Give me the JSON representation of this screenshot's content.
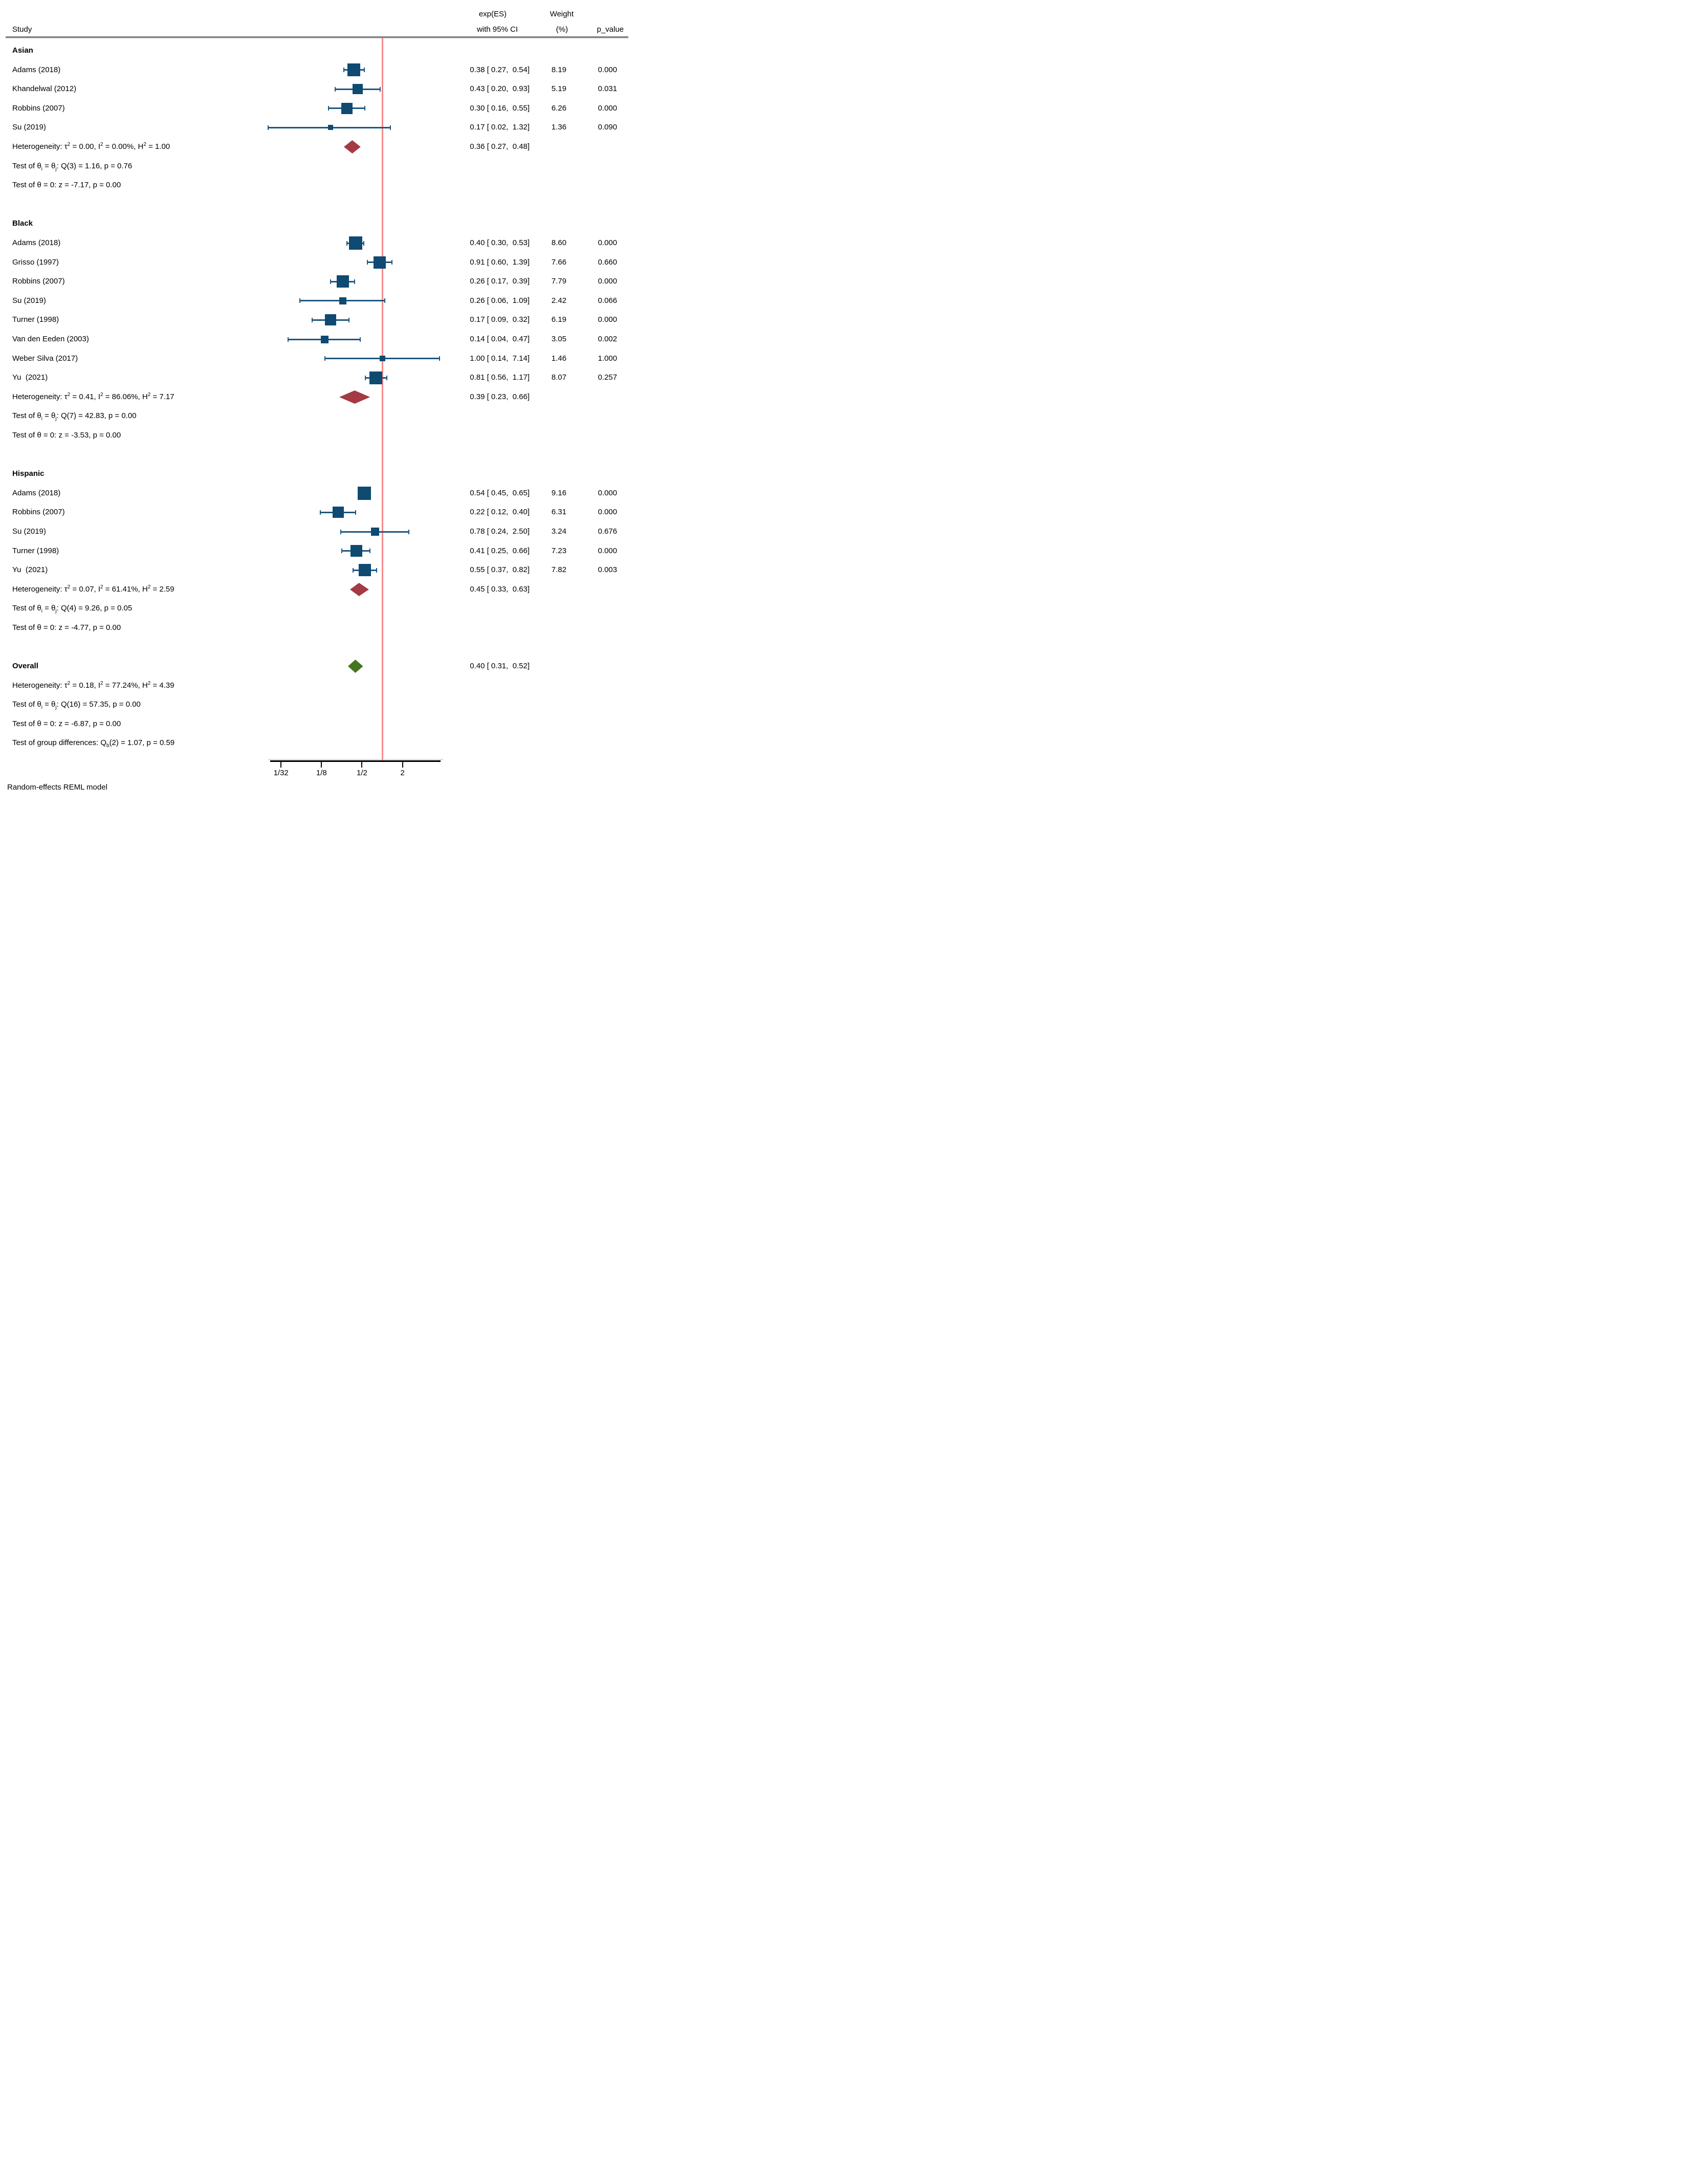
{
  "header": {
    "study": "Study",
    "es_line1": "exp(ES)",
    "es_line2": "with 95% CI",
    "weight_line1": "Weight",
    "weight_line2": "(%)",
    "p_value": "p_value"
  },
  "footer": {
    "model_note": "Random-effects REML model"
  },
  "chart_data": {
    "type": "forest",
    "x_scale": "log",
    "x_axis_range": [
      0.02,
      7.3
    ],
    "reference_value": 1,
    "x_ticks": [
      {
        "label": "1/32",
        "value": 0.03125
      },
      {
        "label": "1/8",
        "value": 0.125
      },
      {
        "label": "1/2",
        "value": 0.5
      },
      {
        "label": "2",
        "value": 2
      }
    ],
    "colors": {
      "marker": "#0e4a71",
      "ci_line": "#1f567e",
      "subgroup_diamond": "#a43a43",
      "overall_diamond": "#45761f",
      "reference_line": "#f58a8a",
      "header_rule": "#7f7f7f",
      "axis": "#000000"
    },
    "groups": [
      {
        "label": "Asian",
        "studies": [
          {
            "label": "Adams (2018)",
            "es": 0.38,
            "ci_low": 0.27,
            "ci_high": 0.54,
            "es_text": "0.38 [ 0.27,  0.54]",
            "weight": "8.19",
            "p": "0.000"
          },
          {
            "label": "Khandelwal (2012)",
            "es": 0.43,
            "ci_low": 0.2,
            "ci_high": 0.93,
            "es_text": "0.43 [ 0.20,  0.93]",
            "weight": "5.19",
            "p": "0.031"
          },
          {
            "label": "Robbins (2007)",
            "es": 0.3,
            "ci_low": 0.16,
            "ci_high": 0.55,
            "es_text": "0.30 [ 0.16,  0.55]",
            "weight": "6.26",
            "p": "0.000"
          },
          {
            "label": "Su (2019)",
            "es": 0.17,
            "ci_low": 0.02,
            "ci_high": 1.32,
            "es_text": "0.17 [ 0.02,  1.32]",
            "weight": "1.36",
            "p": "0.090"
          }
        ],
        "summary": {
          "es": 0.36,
          "ci_low": 0.27,
          "ci_high": 0.48,
          "es_text": "0.36 [ 0.27,  0.48]",
          "heterogeneity": "Heterogeneity: τ^{2} = 0.00, I^{2} = 0.00%, H^{2} = 1.00",
          "test_theta_ij": "Test of θ_{i} = θ_{j}: Q(3) = 1.16, p = 0.76",
          "test_theta_zero": "Test of θ = 0: z = -7.17, p = 0.00"
        }
      },
      {
        "label": "Black",
        "studies": [
          {
            "label": "Adams (2018)",
            "es": 0.4,
            "ci_low": 0.3,
            "ci_high": 0.53,
            "es_text": "0.40 [ 0.30,  0.53]",
            "weight": "8.60",
            "p": "0.000"
          },
          {
            "label": "Grisso (1997)",
            "es": 0.91,
            "ci_low": 0.6,
            "ci_high": 1.39,
            "es_text": "0.91 [ 0.60,  1.39]",
            "weight": "7.66",
            "p": "0.660"
          },
          {
            "label": "Robbins (2007)",
            "es": 0.26,
            "ci_low": 0.17,
            "ci_high": 0.39,
            "es_text": "0.26 [ 0.17,  0.39]",
            "weight": "7.79",
            "p": "0.000"
          },
          {
            "label": "Su (2019)",
            "es": 0.26,
            "ci_low": 0.06,
            "ci_high": 1.09,
            "es_text": "0.26 [ 0.06,  1.09]",
            "weight": "2.42",
            "p": "0.066"
          },
          {
            "label": "Turner (1998)",
            "es": 0.17,
            "ci_low": 0.09,
            "ci_high": 0.32,
            "es_text": "0.17 [ 0.09,  0.32]",
            "weight": "6.19",
            "p": "0.000"
          },
          {
            "label": "Van den Eeden (2003)",
            "es": 0.14,
            "ci_low": 0.04,
            "ci_high": 0.47,
            "es_text": "0.14 [ 0.04,  0.47]",
            "weight": "3.05",
            "p": "0.002"
          },
          {
            "label": "Weber Silva (2017)",
            "es": 1.0,
            "ci_low": 0.14,
            "ci_high": 7.14,
            "es_text": "1.00 [ 0.14,  7.14]",
            "weight": "1.46",
            "p": "1.000"
          },
          {
            "label": "Yu  (2021)",
            "es": 0.81,
            "ci_low": 0.56,
            "ci_high": 1.17,
            "es_text": "0.81 [ 0.56,  1.17]",
            "weight": "8.07",
            "p": "0.257"
          }
        ],
        "summary": {
          "es": 0.39,
          "ci_low": 0.23,
          "ci_high": 0.66,
          "es_text": "0.39 [ 0.23,  0.66]",
          "heterogeneity": "Heterogeneity: τ^{2} = 0.41, I^{2} = 86.06%, H^{2} = 7.17",
          "test_theta_ij": "Test of θ_{i} = θ_{j}: Q(7) = 42.83, p = 0.00",
          "test_theta_zero": "Test of θ = 0: z = -3.53, p = 0.00"
        }
      },
      {
        "label": "Hispanic",
        "studies": [
          {
            "label": "Adams (2018)",
            "es": 0.54,
            "ci_low": 0.45,
            "ci_high": 0.65,
            "es_text": "0.54 [ 0.45,  0.65]",
            "weight": "9.16",
            "p": "0.000"
          },
          {
            "label": "Robbins (2007)",
            "es": 0.22,
            "ci_low": 0.12,
            "ci_high": 0.4,
            "es_text": "0.22 [ 0.12,  0.40]",
            "weight": "6.31",
            "p": "0.000"
          },
          {
            "label": "Su (2019)",
            "es": 0.78,
            "ci_low": 0.24,
            "ci_high": 2.5,
            "es_text": "0.78 [ 0.24,  2.50]",
            "weight": "3.24",
            "p": "0.676"
          },
          {
            "label": "Turner (1998)",
            "es": 0.41,
            "ci_low": 0.25,
            "ci_high": 0.66,
            "es_text": "0.41 [ 0.25,  0.66]",
            "weight": "7.23",
            "p": "0.000"
          },
          {
            "label": "Yu  (2021)",
            "es": 0.55,
            "ci_low": 0.37,
            "ci_high": 0.82,
            "es_text": "0.55 [ 0.37,  0.82]",
            "weight": "7.82",
            "p": "0.003"
          }
        ],
        "summary": {
          "es": 0.45,
          "ci_low": 0.33,
          "ci_high": 0.63,
          "es_text": "0.45 [ 0.33,  0.63]",
          "heterogeneity": "Heterogeneity: τ^{2} = 0.07, I^{2} = 61.41%, H^{2} = 2.59",
          "test_theta_ij": "Test of θ_{i} = θ_{j}: Q(4) = 9.26, p = 0.05",
          "test_theta_zero": "Test of θ = 0: z = -4.77, p = 0.00"
        }
      }
    ],
    "overall": {
      "label": "Overall",
      "es": 0.4,
      "ci_low": 0.31,
      "ci_high": 0.52,
      "es_text": "0.40 [ 0.31,  0.52]",
      "heterogeneity": "Heterogeneity: τ^{2} = 0.18, I^{2} = 77.24%, H^{2} = 4.39",
      "test_theta_ij": "Test of θ_{i} = θ_{j}: Q(16) = 57.35, p = 0.00",
      "test_theta_zero": "Test of θ = 0: z = -6.87, p = 0.00"
    },
    "group_difference": "Test of group differences: Q_{b}(2) = 1.07, p = 0.59"
  }
}
